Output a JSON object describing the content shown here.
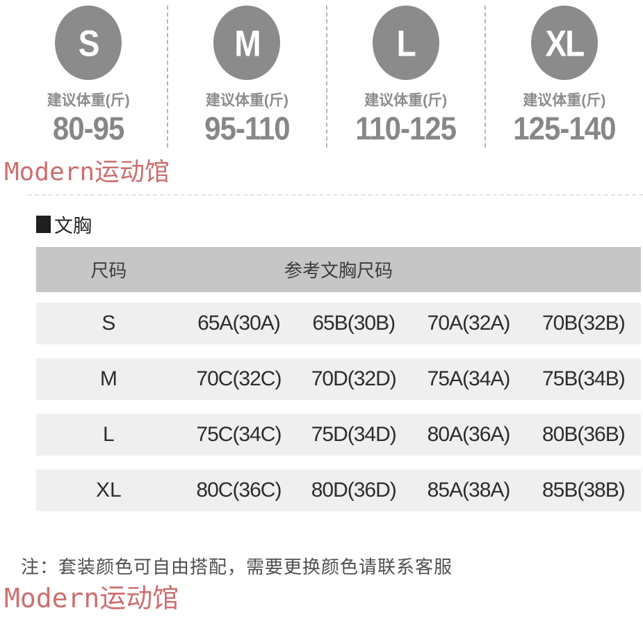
{
  "weight_guide": {
    "label": "建议体重(斤)",
    "sizes": [
      {
        "size": "S",
        "range": "80-95"
      },
      {
        "size": "M",
        "range": "95-110"
      },
      {
        "size": "L",
        "range": "110-125"
      },
      {
        "size": "XL",
        "range": "125-140"
      }
    ]
  },
  "watermark": {
    "text": "Modern运动馆"
  },
  "section": {
    "title": "文胸"
  },
  "bra_table": {
    "headers": {
      "size": "尺码",
      "reference": "参考文胸尺码"
    },
    "rows": [
      {
        "size": "S",
        "cells": [
          "65A(30A)",
          "65B(30B)",
          "70A(32A)",
          "70B(32B)"
        ]
      },
      {
        "size": "M",
        "cells": [
          "70C(32C)",
          "70D(32D)",
          "75A(34A)",
          "75B(34B)"
        ]
      },
      {
        "size": "L",
        "cells": [
          "75C(34C)",
          "75D(34D)",
          "80A(36A)",
          "80B(36B)"
        ]
      },
      {
        "size": "XL",
        "cells": [
          "80C(36C)",
          "80D(36D)",
          "85A(38A)",
          "85B(38B)"
        ]
      }
    ]
  },
  "note": "注：套装颜色可自由搭配，需要更换颜色请联系客服",
  "colors": {
    "circle_gray": "#8b8b8b",
    "weight_text": "#878787",
    "label_gray": "#8c8c8c",
    "divider_dash": "#b5b5b5",
    "watermark_red": "#cd6f6f",
    "header_bg": "#c6c6c6",
    "row_bg": "#efeff0",
    "table_text": "#2d2d2d",
    "note_text": "#4f4f4f",
    "title_text": "#262626"
  }
}
